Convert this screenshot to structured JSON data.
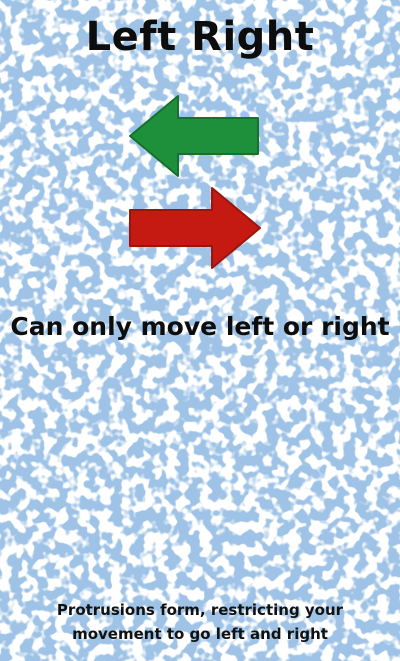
{
  "card": {
    "title": "Left Right",
    "subtitle": "Can only move left or right",
    "description": "Protrusions form, restricting your movement to go left and right"
  },
  "arrows": {
    "left": {
      "icon": "left-arrow-icon",
      "color": "#1e8f3a"
    },
    "right": {
      "icon": "right-arrow-icon",
      "color": "#c41a12"
    }
  },
  "colors": {
    "background": "#9ec3e6",
    "speckle": "#ffffff",
    "text": "#0d0d0d"
  }
}
